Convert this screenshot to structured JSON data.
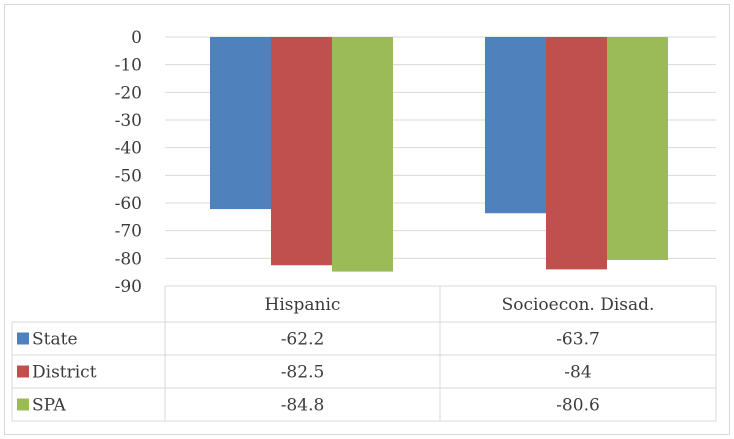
{
  "chart_data": {
    "type": "bar",
    "categories": [
      "Hispanic",
      "Socioecon. Disad."
    ],
    "series": [
      {
        "name": "State",
        "values": [
          -62.2,
          -63.7
        ],
        "color": "#4f81bd"
      },
      {
        "name": "District",
        "values": [
          -82.5,
          -84
        ],
        "color": "#c0504d"
      },
      {
        "name": "SPA",
        "values": [
          -84.8,
          -80.6
        ],
        "color": "#9bbb59"
      }
    ],
    "value_labels": [
      [
        "-62.2",
        "-63.7"
      ],
      [
        "-82.5",
        "-84"
      ],
      [
        "-84.8",
        "-80.6"
      ]
    ],
    "y_ticks": [
      "0",
      "-10",
      "-20",
      "-30",
      "-40",
      "-50",
      "-60",
      "-70",
      "-80",
      "-90"
    ],
    "ylim": [
      -90,
      0
    ],
    "grid": true,
    "legend": "data-table"
  }
}
